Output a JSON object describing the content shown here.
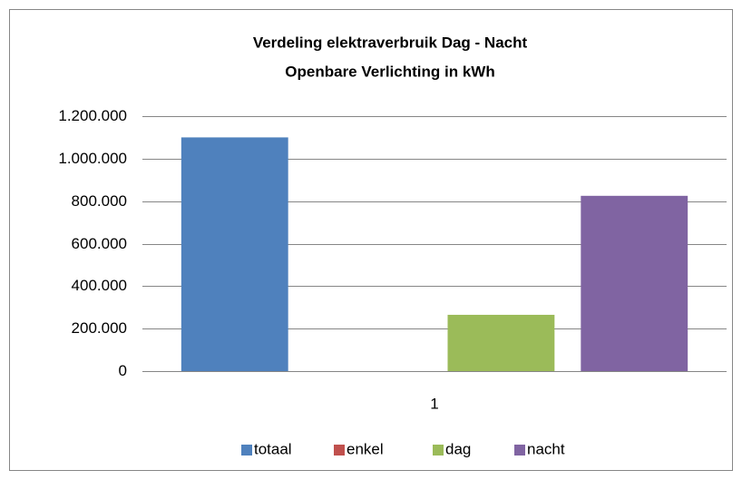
{
  "chart_data": {
    "type": "bar",
    "title": [
      "Verdeling elektraverbruik Dag - Nacht",
      "Openbare Verlichting in kWh"
    ],
    "categories": [
      "1"
    ],
    "series": [
      {
        "name": "totaal",
        "color": "#4f81bd",
        "values": [
          1100000
        ]
      },
      {
        "name": "enkel",
        "color": "#c0504d",
        "values": [
          0
        ]
      },
      {
        "name": "dag",
        "color": "#9bbb59",
        "values": [
          265000
        ]
      },
      {
        "name": "nacht",
        "color": "#8064a2",
        "values": [
          825000
        ]
      }
    ],
    "ylim": [
      0,
      1200000
    ],
    "yticks": [
      0,
      {
        "value": 200000,
        "label": "200.000"
      },
      {
        "value": 400000,
        "label": "400.000"
      },
      {
        "value": 600000,
        "label": "600.000"
      },
      {
        "value": 800000,
        "label": "800.000"
      },
      {
        "value": 1000000,
        "label": "1.000.000"
      },
      {
        "value": 1200000,
        "label": "1.200.000"
      }
    ],
    "grid": true,
    "legend": "bottom"
  }
}
